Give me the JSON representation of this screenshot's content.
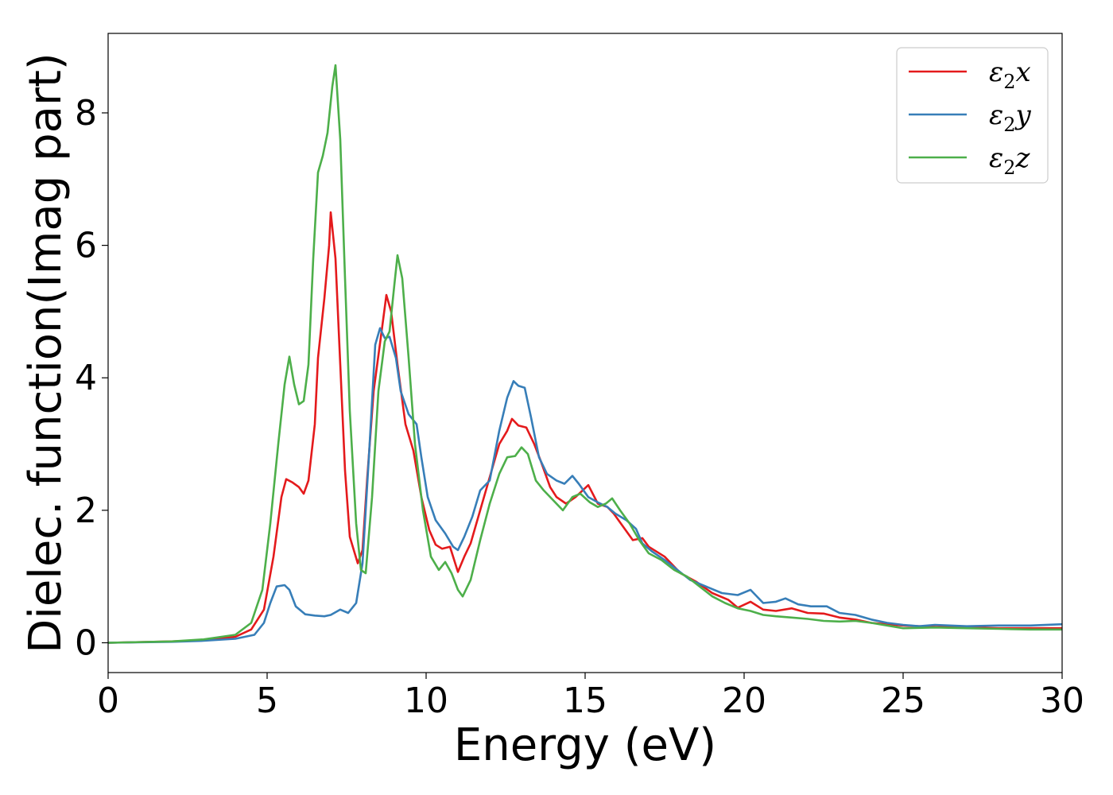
{
  "chart_data": {
    "type": "line",
    "xlabel": "Energy (eV)",
    "ylabel": "Dielec. function(Imag part)",
    "xlim": [
      0,
      30
    ],
    "ylim": [
      -0.45,
      9.2
    ],
    "xticks": [
      "0",
      "5",
      "10",
      "15",
      "20",
      "25",
      "30"
    ],
    "yticks": [
      "0",
      "2",
      "4",
      "6",
      "8"
    ],
    "grid": false,
    "legend_position": "top-right",
    "series": [
      {
        "name": "ε₂x",
        "legend_main": "ε",
        "legend_sub": "2",
        "legend_axis": "x",
        "color": "#e41a1c",
        "points": [
          [
            0,
            0
          ],
          [
            2,
            0.02
          ],
          [
            3,
            0.04
          ],
          [
            4,
            0.09
          ],
          [
            4.5,
            0.2
          ],
          [
            4.9,
            0.5
          ],
          [
            5.2,
            1.3
          ],
          [
            5.45,
            2.2
          ],
          [
            5.6,
            2.47
          ],
          [
            5.8,
            2.42
          ],
          [
            6.0,
            2.35
          ],
          [
            6.15,
            2.25
          ],
          [
            6.3,
            2.45
          ],
          [
            6.5,
            3.3
          ],
          [
            6.6,
            4.3
          ],
          [
            6.8,
            5.2
          ],
          [
            6.95,
            6.0
          ],
          [
            7.0,
            6.5
          ],
          [
            7.15,
            5.8
          ],
          [
            7.3,
            4.2
          ],
          [
            7.45,
            2.6
          ],
          [
            7.6,
            1.6
          ],
          [
            7.85,
            1.2
          ],
          [
            8.0,
            1.4
          ],
          [
            8.15,
            2.5
          ],
          [
            8.35,
            3.8
          ],
          [
            8.6,
            4.7
          ],
          [
            8.75,
            5.25
          ],
          [
            8.9,
            5.0
          ],
          [
            9.1,
            4.2
          ],
          [
            9.35,
            3.3
          ],
          [
            9.6,
            2.9
          ],
          [
            9.85,
            2.2
          ],
          [
            10.1,
            1.7
          ],
          [
            10.3,
            1.48
          ],
          [
            10.5,
            1.42
          ],
          [
            10.75,
            1.45
          ],
          [
            11.0,
            1.07
          ],
          [
            11.2,
            1.3
          ],
          [
            11.4,
            1.5
          ],
          [
            11.7,
            2.0
          ],
          [
            12.0,
            2.5
          ],
          [
            12.3,
            3.0
          ],
          [
            12.55,
            3.2
          ],
          [
            12.7,
            3.38
          ],
          [
            12.9,
            3.28
          ],
          [
            13.15,
            3.25
          ],
          [
            13.4,
            3.0
          ],
          [
            13.6,
            2.75
          ],
          [
            13.9,
            2.35
          ],
          [
            14.1,
            2.2
          ],
          [
            14.4,
            2.1
          ],
          [
            14.7,
            2.2
          ],
          [
            15.1,
            2.38
          ],
          [
            15.4,
            2.1
          ],
          [
            15.7,
            2.05
          ],
          [
            15.9,
            1.95
          ],
          [
            16.2,
            1.75
          ],
          [
            16.5,
            1.55
          ],
          [
            16.8,
            1.58
          ],
          [
            17.0,
            1.45
          ],
          [
            17.5,
            1.3
          ],
          [
            18.0,
            1.05
          ],
          [
            18.5,
            0.92
          ],
          [
            19.0,
            0.75
          ],
          [
            19.5,
            0.65
          ],
          [
            19.8,
            0.53
          ],
          [
            20.2,
            0.62
          ],
          [
            20.6,
            0.5
          ],
          [
            21.0,
            0.48
          ],
          [
            21.5,
            0.52
          ],
          [
            22.0,
            0.45
          ],
          [
            22.5,
            0.44
          ],
          [
            23.0,
            0.38
          ],
          [
            23.5,
            0.35
          ],
          [
            24.0,
            0.3
          ],
          [
            24.5,
            0.28
          ],
          [
            25.0,
            0.26
          ],
          [
            26.0,
            0.24
          ],
          [
            27.0,
            0.23
          ],
          [
            28.0,
            0.22
          ],
          [
            29.0,
            0.22
          ],
          [
            30.0,
            0.22
          ]
        ]
      },
      {
        "name": "ε₂y",
        "legend_main": "ε",
        "legend_sub": "2",
        "legend_axis": "y",
        "color": "#377eb8",
        "points": [
          [
            0,
            0
          ],
          [
            2,
            0.015
          ],
          [
            3,
            0.03
          ],
          [
            4,
            0.06
          ],
          [
            4.6,
            0.12
          ],
          [
            4.9,
            0.3
          ],
          [
            5.1,
            0.6
          ],
          [
            5.3,
            0.85
          ],
          [
            5.55,
            0.87
          ],
          [
            5.7,
            0.8
          ],
          [
            5.9,
            0.55
          ],
          [
            6.2,
            0.43
          ],
          [
            6.5,
            0.41
          ],
          [
            6.8,
            0.4
          ],
          [
            7.0,
            0.42
          ],
          [
            7.3,
            0.5
          ],
          [
            7.55,
            0.45
          ],
          [
            7.8,
            0.6
          ],
          [
            8.0,
            1.2
          ],
          [
            8.2,
            2.8
          ],
          [
            8.4,
            4.5
          ],
          [
            8.55,
            4.75
          ],
          [
            8.7,
            4.6
          ],
          [
            8.85,
            4.62
          ],
          [
            9.05,
            4.3
          ],
          [
            9.2,
            3.8
          ],
          [
            9.45,
            3.45
          ],
          [
            9.7,
            3.3
          ],
          [
            9.85,
            2.8
          ],
          [
            10.05,
            2.2
          ],
          [
            10.3,
            1.85
          ],
          [
            10.6,
            1.65
          ],
          [
            10.85,
            1.45
          ],
          [
            11.0,
            1.4
          ],
          [
            11.2,
            1.6
          ],
          [
            11.45,
            1.9
          ],
          [
            11.7,
            2.3
          ],
          [
            12.0,
            2.45
          ],
          [
            12.3,
            3.2
          ],
          [
            12.55,
            3.7
          ],
          [
            12.75,
            3.95
          ],
          [
            12.9,
            3.88
          ],
          [
            13.1,
            3.85
          ],
          [
            13.3,
            3.4
          ],
          [
            13.55,
            2.8
          ],
          [
            13.8,
            2.55
          ],
          [
            14.1,
            2.45
          ],
          [
            14.35,
            2.4
          ],
          [
            14.6,
            2.52
          ],
          [
            14.8,
            2.4
          ],
          [
            15.1,
            2.2
          ],
          [
            15.4,
            2.12
          ],
          [
            15.7,
            2.05
          ],
          [
            15.95,
            1.95
          ],
          [
            16.3,
            1.85
          ],
          [
            16.6,
            1.72
          ],
          [
            16.8,
            1.5
          ],
          [
            17.1,
            1.38
          ],
          [
            17.5,
            1.25
          ],
          [
            17.9,
            1.1
          ],
          [
            18.3,
            0.95
          ],
          [
            18.8,
            0.85
          ],
          [
            19.3,
            0.75
          ],
          [
            19.8,
            0.72
          ],
          [
            20.2,
            0.8
          ],
          [
            20.6,
            0.6
          ],
          [
            21.0,
            0.62
          ],
          [
            21.3,
            0.67
          ],
          [
            21.7,
            0.58
          ],
          [
            22.1,
            0.55
          ],
          [
            22.6,
            0.55
          ],
          [
            23.0,
            0.45
          ],
          [
            23.5,
            0.42
          ],
          [
            24.0,
            0.35
          ],
          [
            24.5,
            0.3
          ],
          [
            25.0,
            0.27
          ],
          [
            25.5,
            0.25
          ],
          [
            26.0,
            0.27
          ],
          [
            27.0,
            0.25
          ],
          [
            28.0,
            0.26
          ],
          [
            29.0,
            0.26
          ],
          [
            30.0,
            0.28
          ]
        ]
      },
      {
        "name": "ε₂z",
        "legend_main": "ε",
        "legend_sub": "2",
        "legend_axis": "z",
        "color": "#4daf4a",
        "points": [
          [
            0,
            0
          ],
          [
            2,
            0.02
          ],
          [
            3,
            0.05
          ],
          [
            4,
            0.12
          ],
          [
            4.5,
            0.3
          ],
          [
            4.85,
            0.8
          ],
          [
            5.1,
            1.8
          ],
          [
            5.35,
            3.0
          ],
          [
            5.55,
            3.9
          ],
          [
            5.7,
            4.32
          ],
          [
            5.85,
            3.9
          ],
          [
            6.0,
            3.6
          ],
          [
            6.15,
            3.65
          ],
          [
            6.3,
            4.2
          ],
          [
            6.45,
            5.8
          ],
          [
            6.6,
            7.1
          ],
          [
            6.75,
            7.35
          ],
          [
            6.9,
            7.7
          ],
          [
            7.05,
            8.4
          ],
          [
            7.15,
            8.72
          ],
          [
            7.3,
            7.6
          ],
          [
            7.45,
            5.5
          ],
          [
            7.6,
            3.5
          ],
          [
            7.8,
            1.8
          ],
          [
            7.95,
            1.1
          ],
          [
            8.1,
            1.05
          ],
          [
            8.3,
            2.2
          ],
          [
            8.5,
            3.8
          ],
          [
            8.7,
            4.55
          ],
          [
            8.85,
            4.7
          ],
          [
            9.0,
            5.4
          ],
          [
            9.1,
            5.85
          ],
          [
            9.25,
            5.5
          ],
          [
            9.45,
            4.3
          ],
          [
            9.65,
            3.0
          ],
          [
            9.9,
            2.0
          ],
          [
            10.15,
            1.3
          ],
          [
            10.4,
            1.1
          ],
          [
            10.6,
            1.22
          ],
          [
            10.8,
            1.05
          ],
          [
            11.0,
            0.8
          ],
          [
            11.15,
            0.7
          ],
          [
            11.4,
            0.95
          ],
          [
            11.7,
            1.55
          ],
          [
            12.0,
            2.1
          ],
          [
            12.3,
            2.55
          ],
          [
            12.55,
            2.8
          ],
          [
            12.8,
            2.82
          ],
          [
            13.0,
            2.95
          ],
          [
            13.2,
            2.85
          ],
          [
            13.45,
            2.45
          ],
          [
            13.7,
            2.3
          ],
          [
            14.0,
            2.15
          ],
          [
            14.3,
            2.0
          ],
          [
            14.6,
            2.2
          ],
          [
            14.85,
            2.25
          ],
          [
            15.15,
            2.12
          ],
          [
            15.4,
            2.05
          ],
          [
            15.65,
            2.1
          ],
          [
            15.85,
            2.18
          ],
          [
            16.1,
            2.0
          ],
          [
            16.4,
            1.8
          ],
          [
            16.7,
            1.55
          ],
          [
            17.0,
            1.35
          ],
          [
            17.4,
            1.25
          ],
          [
            17.8,
            1.1
          ],
          [
            18.2,
            1.0
          ],
          [
            18.6,
            0.85
          ],
          [
            19.0,
            0.7
          ],
          [
            19.4,
            0.6
          ],
          [
            19.8,
            0.52
          ],
          [
            20.2,
            0.48
          ],
          [
            20.6,
            0.42
          ],
          [
            21.0,
            0.4
          ],
          [
            21.5,
            0.38
          ],
          [
            22.0,
            0.36
          ],
          [
            22.5,
            0.33
          ],
          [
            23.0,
            0.32
          ],
          [
            23.5,
            0.33
          ],
          [
            24.0,
            0.3
          ],
          [
            24.5,
            0.26
          ],
          [
            25.0,
            0.22
          ],
          [
            26.0,
            0.23
          ],
          [
            27.0,
            0.22
          ],
          [
            28.0,
            0.21
          ],
          [
            29.0,
            0.2
          ],
          [
            30.0,
            0.2
          ]
        ]
      }
    ]
  }
}
